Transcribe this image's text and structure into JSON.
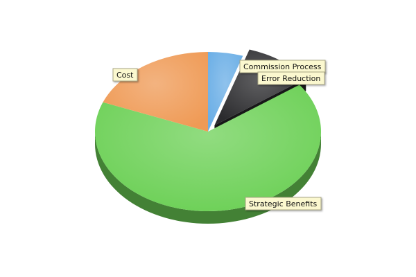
{
  "chart_data": {
    "type": "pie",
    "title": "",
    "style": "3d-exploded",
    "legend": "none",
    "series": [
      {
        "values": [
          {
            "label": "Commission Process",
            "value": 5,
            "color": "#6aaee6"
          },
          {
            "label": "Error Reduction",
            "value": 10,
            "color": "#2b2b2e"
          },
          {
            "label": "Strategic Benefits",
            "value": 66,
            "color": "#6cd056"
          },
          {
            "label": "Cost",
            "value": 19,
            "color": "#ef9a55"
          }
        ]
      }
    ]
  },
  "theme": {
    "background": "#ffffff",
    "label_fill": "#fbf8cf",
    "label_border": "#a8a684"
  }
}
